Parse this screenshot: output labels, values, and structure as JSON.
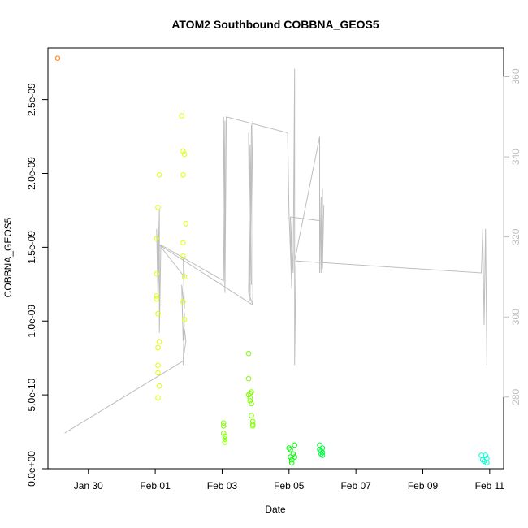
{
  "chart_data": {
    "type": "scatter",
    "title": "ATOM2 Southbound COBBNA_GEOS5",
    "xlabel": "Date",
    "ylabel": "COBBNA_GEOS5",
    "x_scale": "date",
    "xlim": [
      "2016-01-28T19:00",
      "2016-02-11T10:00"
    ],
    "ylim": [
      0,
      2.85e-09
    ],
    "x_ticks": [
      {
        "value": "2016-01-30",
        "label": "Jan 30"
      },
      {
        "value": "2016-02-01",
        "label": "Feb 01"
      },
      {
        "value": "2016-02-03",
        "label": "Feb 03"
      },
      {
        "value": "2016-02-05",
        "label": "Feb 05"
      },
      {
        "value": "2016-02-07",
        "label": "Feb 07"
      },
      {
        "value": "2016-02-09",
        "label": "Feb 09"
      },
      {
        "value": "2016-02-11",
        "label": "Feb 11"
      }
    ],
    "y_ticks": [
      {
        "value": 0,
        "label": "0.0e+00"
      },
      {
        "value": 5e-10,
        "label": "5.0e-10"
      },
      {
        "value": 1e-09,
        "label": "1.0e-09"
      },
      {
        "value": 1.5e-09,
        "label": "1.5e-09"
      },
      {
        "value": 2e-09,
        "label": "2.0e-09"
      },
      {
        "value": 2.5e-09,
        "label": "2.5e-09"
      }
    ],
    "y2lim": [
      262.1,
      367.2
    ],
    "y2_ticks": [
      {
        "value": 280,
        "label": "280"
      },
      {
        "value": 300,
        "label": "300"
      },
      {
        "value": 320,
        "label": "320"
      },
      {
        "value": 340,
        "label": "340"
      },
      {
        "value": 360,
        "label": "360"
      }
    ],
    "grid": false,
    "legend": "none",
    "points": [
      {
        "x": "2016-01-29T02:00",
        "y": 2.78e-09,
        "color": "#ff7f00"
      },
      {
        "x": "2016-02-01T01:00",
        "y": 1.56e-09,
        "color": "#dfff00"
      },
      {
        "x": "2016-02-01T01:00",
        "y": 1.32e-09,
        "color": "#dfff00"
      },
      {
        "x": "2016-02-01T01:00",
        "y": 1.17e-09,
        "color": "#dfff00"
      },
      {
        "x": "2016-02-01T01:00",
        "y": 1.15e-09,
        "color": "#dfff00"
      },
      {
        "x": "2016-02-01T02:00",
        "y": 1.77e-09,
        "color": "#dfff00"
      },
      {
        "x": "2016-02-01T02:00",
        "y": 1.05e-09,
        "color": "#dfff00"
      },
      {
        "x": "2016-02-01T02:00",
        "y": 8.2e-10,
        "color": "#dfff00"
      },
      {
        "x": "2016-02-01T02:00",
        "y": 7e-10,
        "color": "#dfff00"
      },
      {
        "x": "2016-02-01T02:00",
        "y": 6.5e-10,
        "color": "#dfff00"
      },
      {
        "x": "2016-02-01T02:00",
        "y": 4.8e-10,
        "color": "#dfff00"
      },
      {
        "x": "2016-02-01T03:00",
        "y": 1.99e-09,
        "color": "#dfff00"
      },
      {
        "x": "2016-02-01T03:00",
        "y": 8.6e-10,
        "color": "#dfff00"
      },
      {
        "x": "2016-02-01T03:00",
        "y": 5.6e-10,
        "color": "#dfff00"
      },
      {
        "x": "2016-02-01T19:00",
        "y": 2.39e-09,
        "color": "#dfff00"
      },
      {
        "x": "2016-02-01T20:00",
        "y": 2.15e-09,
        "color": "#dfff00"
      },
      {
        "x": "2016-02-01T20:00",
        "y": 1.99e-09,
        "color": "#dfff00"
      },
      {
        "x": "2016-02-01T20:00",
        "y": 1.53e-09,
        "color": "#dfff00"
      },
      {
        "x": "2016-02-01T20:00",
        "y": 1.44e-09,
        "color": "#dfff00"
      },
      {
        "x": "2016-02-01T20:00",
        "y": 1.13e-09,
        "color": "#dfff00"
      },
      {
        "x": "2016-02-01T21:00",
        "y": 2.13e-09,
        "color": "#dfff00"
      },
      {
        "x": "2016-02-01T21:00",
        "y": 1.3e-09,
        "color": "#dfff00"
      },
      {
        "x": "2016-02-01T21:00",
        "y": 1.01e-09,
        "color": "#dfff00"
      },
      {
        "x": "2016-02-01T22:00",
        "y": 1.66e-09,
        "color": "#dfff00"
      },
      {
        "x": "2016-02-03T01:00",
        "y": 3.1e-10,
        "color": "#7fff00"
      },
      {
        "x": "2016-02-03T01:00",
        "y": 2.9e-10,
        "color": "#7fff00"
      },
      {
        "x": "2016-02-03T01:00",
        "y": 2.4e-10,
        "color": "#7fff00"
      },
      {
        "x": "2016-02-03T02:00",
        "y": 2.2e-10,
        "color": "#7fff00"
      },
      {
        "x": "2016-02-03T02:00",
        "y": 2e-10,
        "color": "#7fff00"
      },
      {
        "x": "2016-02-03T02:00",
        "y": 1.8e-10,
        "color": "#7fff00"
      },
      {
        "x": "2016-02-03T19:00",
        "y": 7.8e-10,
        "color": "#7fff00"
      },
      {
        "x": "2016-02-03T19:00",
        "y": 6.1e-10,
        "color": "#7fff00"
      },
      {
        "x": "2016-02-03T19:00",
        "y": 5e-10,
        "color": "#7fff00"
      },
      {
        "x": "2016-02-03T20:00",
        "y": 5.1e-10,
        "color": "#7fff00"
      },
      {
        "x": "2016-02-03T20:00",
        "y": 4.8e-10,
        "color": "#7fff00"
      },
      {
        "x": "2016-02-03T20:00",
        "y": 4.6e-10,
        "color": "#7fff00"
      },
      {
        "x": "2016-02-03T21:00",
        "y": 5.2e-10,
        "color": "#7fff00"
      },
      {
        "x": "2016-02-03T21:00",
        "y": 4.4e-10,
        "color": "#7fff00"
      },
      {
        "x": "2016-02-03T21:00",
        "y": 3.6e-10,
        "color": "#7fff00"
      },
      {
        "x": "2016-02-03T22:00",
        "y": 3.2e-10,
        "color": "#7fff00"
      },
      {
        "x": "2016-02-03T22:00",
        "y": 3e-10,
        "color": "#7fff00"
      },
      {
        "x": "2016-02-03T22:00",
        "y": 2.9e-10,
        "color": "#7fff00"
      },
      {
        "x": "2016-02-05T00:00",
        "y": 1.4e-10,
        "color": "#00ff00"
      },
      {
        "x": "2016-02-05T01:00",
        "y": 1.3e-10,
        "color": "#00ff00"
      },
      {
        "x": "2016-02-05T01:00",
        "y": 8e-11,
        "color": "#00ff00"
      },
      {
        "x": "2016-02-05T02:00",
        "y": 6e-11,
        "color": "#00ff00"
      },
      {
        "x": "2016-02-05T02:00",
        "y": 4e-11,
        "color": "#00ff00"
      },
      {
        "x": "2016-02-05T03:00",
        "y": 1e-10,
        "color": "#00ff00"
      },
      {
        "x": "2016-02-05T04:00",
        "y": 1.6e-10,
        "color": "#00ff00"
      },
      {
        "x": "2016-02-05T04:00",
        "y": 8e-11,
        "color": "#00ff00"
      },
      {
        "x": "2016-02-05T22:00",
        "y": 1.6e-10,
        "color": "#00ff40"
      },
      {
        "x": "2016-02-05T22:00",
        "y": 1.3e-10,
        "color": "#00ff40"
      },
      {
        "x": "2016-02-05T23:00",
        "y": 1.2e-10,
        "color": "#00ff40"
      },
      {
        "x": "2016-02-05T23:00",
        "y": 1e-10,
        "color": "#00ff40"
      },
      {
        "x": "2016-02-06T00:00",
        "y": 1.4e-10,
        "color": "#00ff40"
      },
      {
        "x": "2016-02-06T00:00",
        "y": 1.1e-10,
        "color": "#00ff40"
      },
      {
        "x": "2016-02-06T00:00",
        "y": 9e-11,
        "color": "#00ff40"
      },
      {
        "x": "2016-02-10T18:00",
        "y": 9e-11,
        "color": "#00ffd0"
      },
      {
        "x": "2016-02-10T19:00",
        "y": 6e-11,
        "color": "#00ffd0"
      },
      {
        "x": "2016-02-10T20:00",
        "y": 5e-11,
        "color": "#00ffd0"
      },
      {
        "x": "2016-02-10T21:00",
        "y": 9e-11,
        "color": "#00ffd0"
      },
      {
        "x": "2016-02-10T22:00",
        "y": 4e-11,
        "color": "#00ffd0"
      },
      {
        "x": "2016-02-10T22:00",
        "y": 7e-11,
        "color": "#00ffd0"
      }
    ],
    "line_series": {
      "axis": "right",
      "color": "#bebebe",
      "points": [
        [
          "2016-01-29T07:00",
          271
        ],
        [
          "2016-02-01T20:00",
          289
        ],
        [
          "2016-02-01T22:00",
          294
        ],
        [
          "2016-02-01T21:00",
          297
        ],
        [
          "2016-02-01T20:00",
          288
        ],
        [
          "2016-02-01T21:00",
          301
        ],
        [
          "2016-02-01T20:00",
          294
        ],
        [
          "2016-02-01T19:00",
          308
        ],
        [
          "2016-02-01T21:00",
          302
        ],
        [
          "2016-02-01T20:00",
          315
        ],
        [
          "2016-02-01T21:00",
          310
        ],
        [
          "2016-02-01T03:00",
          318
        ],
        [
          "2016-02-01T02:00",
          305
        ],
        [
          "2016-02-01T01:00",
          322
        ],
        [
          "2016-02-01T02:00",
          312
        ],
        [
          "2016-02-01T03:00",
          327
        ],
        [
          "2016-02-01T03:00",
          296
        ],
        [
          "2016-02-01T04:00",
          318
        ],
        [
          "2016-02-03T01:00",
          309
        ],
        [
          "2016-02-03T02:00",
          349
        ],
        [
          "2016-02-03T02:00",
          307
        ],
        [
          "2016-02-03T01:00",
          350
        ],
        [
          "2016-02-03T02:00",
          310
        ],
        [
          "2016-02-03T01:00",
          344
        ],
        [
          "2016-02-03T02:00",
          306
        ],
        [
          "2016-02-03T03:00",
          350
        ],
        [
          "2016-02-04T23:00",
          346
        ],
        [
          "2016-02-05T00:00",
          326
        ],
        [
          "2016-02-05T02:00",
          307
        ],
        [
          "2016-02-05T01:00",
          325
        ],
        [
          "2016-02-05T03:00",
          311
        ],
        [
          "2016-02-05T04:00",
          362
        ],
        [
          "2016-02-05T04:00",
          288
        ],
        [
          "2016-02-05T05:00",
          314
        ],
        [
          "2016-02-10T18:00",
          311
        ],
        [
          "2016-02-10T19:00",
          322
        ],
        [
          "2016-02-10T20:00",
          298
        ],
        [
          "2016-02-10T21:00",
          322
        ],
        [
          "2016-02-10T22:00",
          288
        ]
      ],
      "extra_segments": [
        [
          [
            "2016-02-03T19:00",
            346
          ],
          [
            "2016-02-03T20:00",
            304
          ],
          [
            "2016-02-03T21:00",
            348
          ],
          [
            "2016-02-03T20:00",
            309
          ],
          [
            "2016-02-03T22:00",
            349
          ],
          [
            "2016-02-03T22:00",
            303
          ],
          [
            "2016-02-03T19:00",
            306
          ],
          [
            "2016-02-03T20:00",
            343
          ],
          [
            "2016-02-03T21:00",
            308
          ]
        ],
        [
          [
            "2016-02-03T22:00",
            303
          ],
          [
            "2016-02-01T03:00",
            318
          ]
        ],
        [
          [
            "2016-02-05T04:00",
            314
          ],
          [
            "2016-02-05T22:00",
            345
          ],
          [
            "2016-02-05T22:00",
            311
          ],
          [
            "2016-02-05T23:00",
            330
          ],
          [
            "2016-02-05T23:00",
            311
          ],
          [
            "2016-02-06T00:00",
            332
          ],
          [
            "2016-02-06T00:00",
            312
          ],
          [
            "2016-02-06T01:00",
            328
          ]
        ],
        [
          [
            "2016-02-05T01:00",
            325
          ],
          [
            "2016-02-05T23:00",
            324
          ]
        ]
      ]
    }
  }
}
